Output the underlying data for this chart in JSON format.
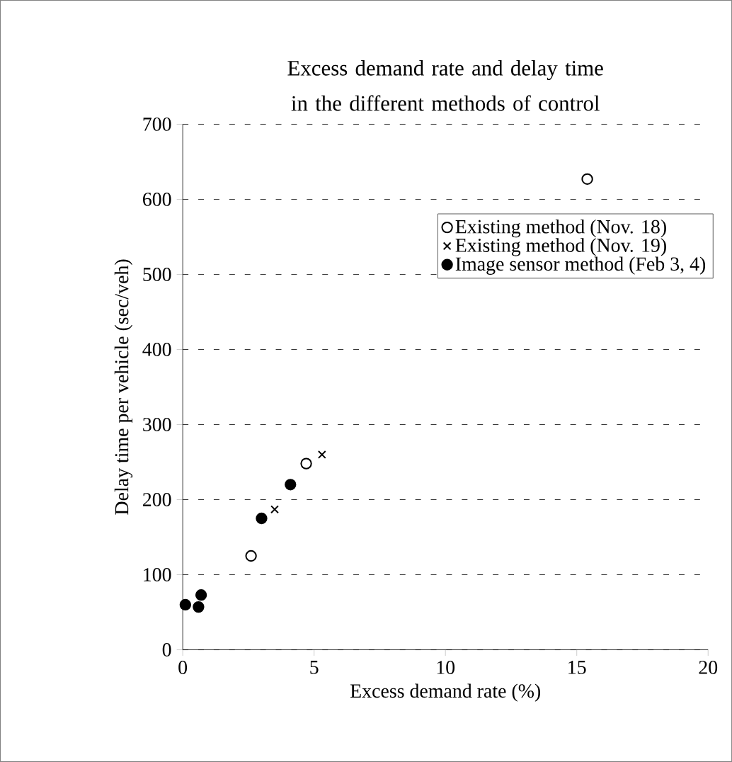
{
  "chart_data": {
    "type": "scatter",
    "title": "Excess demand rate and delay time in the different methods of control",
    "xlabel": "Excess demand rate (%)",
    "ylabel": "Delay time per vehicle (sec/veh)",
    "xlim": [
      0,
      20
    ],
    "xticks": [
      0,
      5,
      10,
      15,
      20
    ],
    "ylim": [
      0,
      700
    ],
    "yticks": [
      0,
      100,
      200,
      300,
      400,
      500,
      600,
      700
    ],
    "grid": "y",
    "legend": "top right",
    "series": [
      {
        "name": "Existing method (Nov. 18)",
        "color": "#000000",
        "marker": "circle",
        "x": [
          2.6,
          4.7,
          15.4
        ],
        "values": [
          125,
          248,
          627
        ]
      },
      {
        "name": "Existing method (Nov. 19)",
        "color": "#000000",
        "marker": "cross",
        "x": [
          3.5,
          5.3
        ],
        "values": [
          187,
          260
        ]
      },
      {
        "name": "Image sensor method (Feb 3, 4)",
        "color": "#000000",
        "marker": "filled circle",
        "x": [
          0.1,
          0.6,
          0.7,
          3.0,
          4.1
        ],
        "values": [
          60,
          57,
          73,
          175,
          220
        ]
      }
    ]
  }
}
